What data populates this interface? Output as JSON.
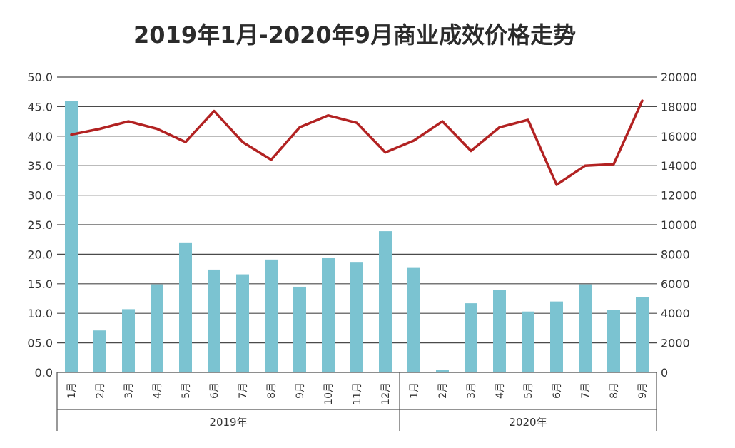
{
  "chart_data": {
    "type": "bar",
    "title": "2019年1月-2020年9月商业成效价格走势",
    "categories": [
      "1月",
      "2月",
      "3月",
      "4月",
      "5月",
      "6月",
      "7月",
      "8月",
      "9月",
      "10月",
      "11月",
      "12月",
      "1月",
      "2月",
      "3月",
      "4月",
      "5月",
      "6月",
      "7月",
      "8月",
      "9月"
    ],
    "groups": [
      {
        "label": "2019年",
        "start": 0,
        "count": 12
      },
      {
        "label": "2020年",
        "start": 12,
        "count": 9
      }
    ],
    "left_axis": {
      "ylim": [
        0,
        50
      ],
      "ticks": [
        "0.0",
        "05.0",
        "10.0",
        "15.0",
        "20.0",
        "25.0",
        "30.0",
        "35.0",
        "40.0",
        "45.0",
        "50.0"
      ]
    },
    "right_axis": {
      "ylim": [
        0,
        20000
      ],
      "ticks": [
        "0",
        "2000",
        "4000",
        "6000",
        "8000",
        "10000",
        "12000",
        "14000",
        "16000",
        "18000",
        "20000"
      ]
    },
    "series": [
      {
        "type": "bar",
        "axis": "left",
        "color": "#7bc3d1",
        "values": [
          46.0,
          7.1,
          10.7,
          14.9,
          22.0,
          17.4,
          16.6,
          19.1,
          14.5,
          19.4,
          18.7,
          23.9,
          17.8,
          0.4,
          11.7,
          14.0,
          10.3,
          12.0,
          14.9,
          10.6,
          12.7
        ]
      },
      {
        "type": "line",
        "axis": "right",
        "color": "#b22222",
        "values": [
          16100,
          16500,
          17000,
          16500,
          15600,
          17700,
          15600,
          14400,
          16600,
          17400,
          16900,
          14900,
          15700,
          17000,
          15000,
          16600,
          17100,
          12700,
          14000,
          14100,
          18400
        ]
      }
    ],
    "grid": true,
    "legend": "none"
  }
}
